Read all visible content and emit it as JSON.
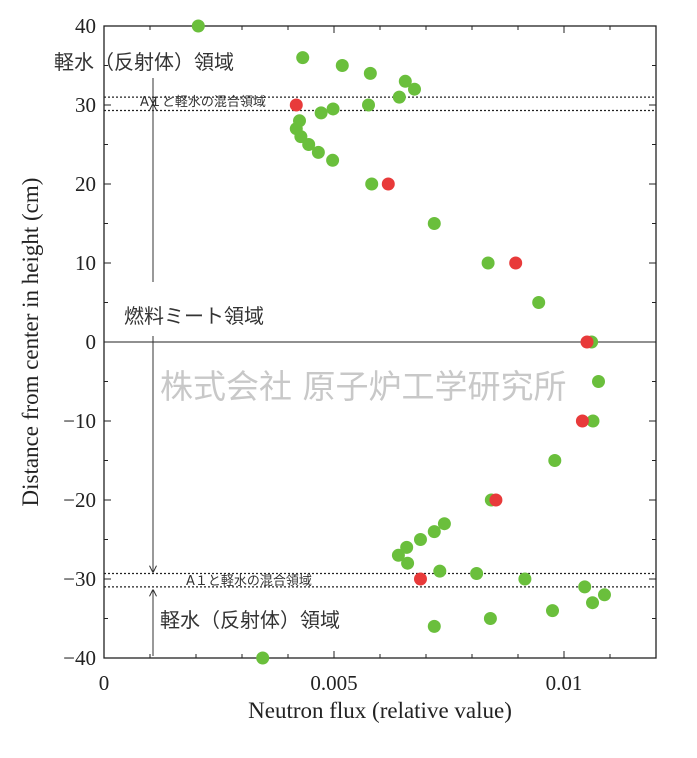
{
  "chart_data": {
    "type": "scatter",
    "xlabel": "Neutron flux (relative value)",
    "ylabel": "Distance from center in height (cm)",
    "xlim": [
      0,
      0.012
    ],
    "ylim": [
      -40,
      40
    ],
    "x_ticks": [
      {
        "value": 0,
        "label": "0"
      },
      {
        "value": 0.005,
        "label": "0.005"
      },
      {
        "value": 0.01,
        "label": "0.01"
      }
    ],
    "y_ticks": [
      {
        "value": 40,
        "label": "40"
      },
      {
        "value": 30,
        "label": "30"
      },
      {
        "value": 20,
        "label": "20"
      },
      {
        "value": 10,
        "label": "10"
      },
      {
        "value": 0,
        "label": "0"
      },
      {
        "value": -10,
        "label": "−10"
      },
      {
        "value": -20,
        "label": "−20"
      },
      {
        "value": -30,
        "label": "−30"
      },
      {
        "value": -40,
        "label": "−40"
      }
    ],
    "series": [
      {
        "color": "#6abf3c",
        "points": [
          {
            "x": 0.00205,
            "y": 40
          },
          {
            "x": 0.00432,
            "y": 36
          },
          {
            "x": 0.00518,
            "y": 35
          },
          {
            "x": 0.00579,
            "y": 34
          },
          {
            "x": 0.00655,
            "y": 33
          },
          {
            "x": 0.00675,
            "y": 32
          },
          {
            "x": 0.00642,
            "y": 31
          },
          {
            "x": 0.00575,
            "y": 30
          },
          {
            "x": 0.00498,
            "y": 29.5
          },
          {
            "x": 0.00472,
            "y": 29
          },
          {
            "x": 0.00425,
            "y": 28
          },
          {
            "x": 0.00418,
            "y": 27
          },
          {
            "x": 0.00428,
            "y": 26
          },
          {
            "x": 0.00445,
            "y": 25
          },
          {
            "x": 0.00466,
            "y": 24
          },
          {
            "x": 0.00497,
            "y": 23
          },
          {
            "x": 0.00582,
            "y": 20
          },
          {
            "x": 0.00718,
            "y": 15
          },
          {
            "x": 0.00835,
            "y": 10
          },
          {
            "x": 0.00945,
            "y": 5
          },
          {
            "x": 0.0106,
            "y": 0
          },
          {
            "x": 0.01075,
            "y": -5
          },
          {
            "x": 0.01063,
            "y": -10
          },
          {
            "x": 0.0098,
            "y": -15
          },
          {
            "x": 0.00842,
            "y": -20
          },
          {
            "x": 0.0074,
            "y": -23
          },
          {
            "x": 0.00718,
            "y": -24
          },
          {
            "x": 0.00688,
            "y": -25
          },
          {
            "x": 0.00658,
            "y": -26
          },
          {
            "x": 0.0064,
            "y": -27
          },
          {
            "x": 0.0066,
            "y": -28
          },
          {
            "x": 0.0073,
            "y": -29
          },
          {
            "x": 0.0081,
            "y": -29.3
          },
          {
            "x": 0.00915,
            "y": -30
          },
          {
            "x": 0.01045,
            "y": -31
          },
          {
            "x": 0.01088,
            "y": -32
          },
          {
            "x": 0.01062,
            "y": -33
          },
          {
            "x": 0.00975,
            "y": -34
          },
          {
            "x": 0.0084,
            "y": -35
          },
          {
            "x": 0.00718,
            "y": -36
          },
          {
            "x": 0.00345,
            "y": -40
          }
        ]
      },
      {
        "color": "#e83a3a",
        "points": [
          {
            "x": 0.00418,
            "y": 30
          },
          {
            "x": 0.00618,
            "y": 20
          },
          {
            "x": 0.00895,
            "y": 10
          },
          {
            "x": 0.0105,
            "y": 0
          },
          {
            "x": 0.0104,
            "y": -10
          },
          {
            "x": 0.00852,
            "y": -20
          },
          {
            "x": 0.00688,
            "y": -30
          }
        ]
      }
    ],
    "boundary_lines_y": [
      31,
      29.3,
      -29.3,
      -31
    ],
    "annotations": {
      "light_water_top": "軽水（反射体）領域",
      "mix_top": "A１と軽水の混合領域",
      "fuel_region": "燃料ミート領域",
      "mix_bottom": "A１と軽水の混合領域",
      "light_water_bottom": "軽水（反射体）領域"
    },
    "watermark": "株式会社 原子炉工学研究所"
  }
}
